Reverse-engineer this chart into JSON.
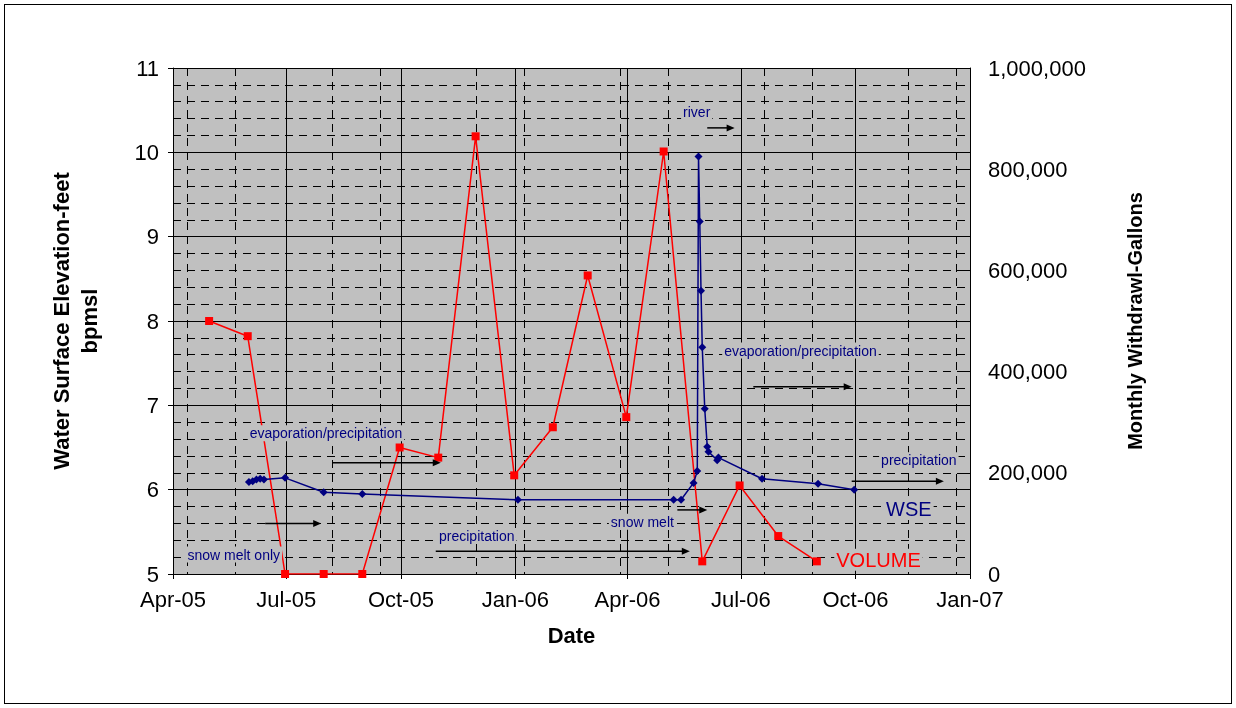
{
  "chart_data": {
    "type": "line",
    "xlabel": "Date",
    "ylabel": "Water Surface Elevation-feet\nbpmsl",
    "y2label": "Monthly Withdrawl-Gallons",
    "xlim": [
      "2005-04-01",
      "2007-01-01"
    ],
    "xticks": [
      {
        "value": "2005-04-01",
        "label": "Apr-05"
      },
      {
        "value": "2005-07-01",
        "label": "Jul-05"
      },
      {
        "value": "2005-10-01",
        "label": "Oct-05"
      },
      {
        "value": "2006-01-01",
        "label": "Jan-06"
      },
      {
        "value": "2006-04-01",
        "label": "Apr-06"
      },
      {
        "value": "2006-07-01",
        "label": "Jul-06"
      },
      {
        "value": "2006-10-01",
        "label": "Oct-06"
      },
      {
        "value": "2007-01-01",
        "label": "Jan-07"
      }
    ],
    "ylim": [
      5,
      11
    ],
    "yticks": [
      5,
      6,
      7,
      8,
      9,
      10,
      11
    ],
    "y2lim": [
      0,
      1000000
    ],
    "y2ticks": [
      0,
      {
        "value": 200000,
        "label": "200,000"
      },
      {
        "value": 400000,
        "label": "400,000"
      },
      {
        "value": 600000,
        "label": "600,000"
      },
      {
        "value": 800000,
        "label": "800,000"
      },
      {
        "value": 1000000,
        "label": "1,000,000"
      }
    ],
    "grid": true,
    "legend": false,
    "series": [
      {
        "name": "WSE",
        "color": "#000080",
        "marker": "diamond",
        "x": [
          "2005-06-01",
          "2005-06-04",
          "2005-06-07",
          "2005-06-10",
          "2005-06-13",
          "2005-06-30",
          "2005-07-31",
          "2005-08-31",
          "2006-01-03",
          "2006-05-08",
          "2006-05-14",
          "2006-05-24",
          "2006-05-27",
          "2006-05-28",
          "2006-05-29",
          "2006-05-30",
          "2006-05-31",
          "2006-06-02",
          "2006-06-04",
          "2006-06-05",
          "2006-06-12",
          "2006-06-13",
          "2006-07-18",
          "2006-09-01",
          "2006-09-30"
        ],
        "values": [
          6.09,
          6.1,
          6.12,
          6.13,
          6.12,
          6.14,
          5.97,
          5.95,
          5.88,
          5.88,
          5.88,
          6.08,
          6.22,
          9.95,
          9.18,
          8.36,
          7.69,
          6.96,
          6.51,
          6.45,
          6.35,
          6.38,
          6.13,
          6.07,
          6.0
        ]
      },
      {
        "name": "VOLUME",
        "color": "#ff0000",
        "marker": "square",
        "axis": "y2",
        "x": [
          "2005-04-30",
          "2005-05-31",
          "2005-06-30",
          "2005-07-31",
          "2005-08-31",
          "2005-09-30",
          "2005-10-31",
          "2005-11-30",
          "2005-12-31",
          "2006-01-31",
          "2006-02-28",
          "2006-03-31",
          "2006-04-30",
          "2006-05-31",
          "2006-06-30",
          "2006-07-31",
          "2006-08-31"
        ],
        "values": [
          500000,
          470000,
          0,
          0,
          0,
          250000,
          230000,
          865000,
          195000,
          290000,
          590000,
          310000,
          835000,
          25000,
          175000,
          75000,
          25000
        ]
      }
    ],
    "annotations": [
      "snow melt only",
      "evaporation/precipitation",
      "precipitation",
      "snow melt",
      "river",
      "evaporation/precipitation",
      "precipitation"
    ]
  }
}
